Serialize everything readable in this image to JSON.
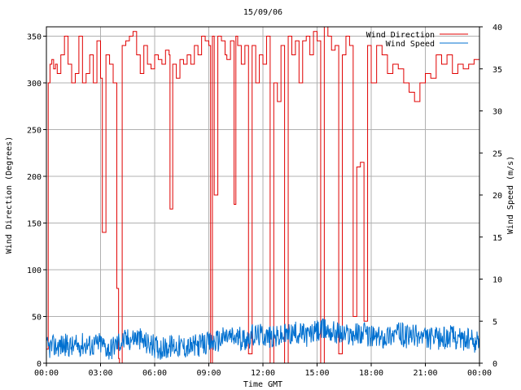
{
  "chart_data": {
    "type": "line",
    "title": "15/09/06",
    "xlabel": "Time GMT",
    "ylabel_left": "Wind Direction (Degrees)",
    "ylabel_right": "Wind Speed (m/s)",
    "x_ticks": [
      "00:00",
      "03:00",
      "06:00",
      "09:00",
      "12:00",
      "15:00",
      "18:00",
      "21:00",
      "00:00"
    ],
    "x_range_hours": [
      0,
      24
    ],
    "y_left_ticks": [
      0,
      50,
      100,
      150,
      200,
      250,
      300,
      350
    ],
    "y_left_range": [
      0,
      360
    ],
    "y_right_ticks": [
      0,
      5,
      10,
      15,
      20,
      25,
      30,
      35,
      40
    ],
    "y_right_range": [
      0,
      40
    ],
    "grid": true,
    "legend_position": "top-right",
    "series": [
      {
        "name": "Wind Direction",
        "axis": "left",
        "color": "#e00000",
        "step": true,
        "x": [
          0.0,
          0.1,
          0.2,
          0.3,
          0.4,
          0.5,
          0.6,
          0.8,
          1.0,
          1.2,
          1.4,
          1.6,
          1.8,
          2.0,
          2.2,
          2.4,
          2.6,
          2.8,
          3.0,
          3.1,
          3.3,
          3.5,
          3.7,
          3.9,
          4.0,
          4.05,
          4.2,
          4.4,
          4.6,
          4.8,
          5.0,
          5.2,
          5.4,
          5.6,
          5.8,
          6.0,
          6.2,
          6.4,
          6.6,
          6.8,
          6.85,
          7.0,
          7.2,
          7.4,
          7.6,
          7.8,
          8.0,
          8.2,
          8.4,
          8.6,
          8.8,
          9.0,
          9.1,
          9.2,
          9.3,
          9.5,
          9.7,
          9.9,
          10.0,
          10.2,
          10.4,
          10.5,
          10.6,
          10.8,
          11.0,
          11.2,
          11.4,
          11.6,
          11.8,
          12.0,
          12.2,
          12.4,
          12.6,
          12.8,
          13.0,
          13.2,
          13.4,
          13.6,
          13.8,
          14.0,
          14.2,
          14.4,
          14.6,
          14.8,
          15.0,
          15.2,
          15.4,
          15.6,
          15.8,
          16.0,
          16.2,
          16.4,
          16.6,
          16.8,
          17.0,
          17.2,
          17.4,
          17.6,
          17.8,
          18.0,
          18.3,
          18.6,
          18.9,
          19.2,
          19.5,
          19.8,
          20.1,
          20.4,
          20.7,
          21.0,
          21.3,
          21.6,
          21.9,
          22.2,
          22.5,
          22.8,
          23.1,
          23.4,
          23.7,
          24.0
        ],
        "values": [
          15,
          300,
          320,
          325,
          315,
          320,
          310,
          330,
          350,
          320,
          300,
          310,
          350,
          300,
          310,
          330,
          300,
          345,
          305,
          140,
          330,
          320,
          300,
          80,
          5,
          0,
          340,
          345,
          350,
          355,
          330,
          310,
          340,
          320,
          315,
          330,
          325,
          320,
          335,
          330,
          165,
          320,
          305,
          325,
          320,
          330,
          320,
          340,
          330,
          350,
          345,
          340,
          0,
          350,
          180,
          350,
          345,
          330,
          325,
          345,
          170,
          350,
          340,
          320,
          340,
          10,
          340,
          300,
          330,
          320,
          350,
          0,
          300,
          280,
          340,
          0,
          350,
          330,
          345,
          300,
          345,
          350,
          330,
          355,
          345,
          0,
          360,
          350,
          335,
          340,
          10,
          330,
          350,
          340,
          50,
          210,
          215,
          45,
          340,
          300,
          340,
          330,
          310,
          320,
          315,
          300,
          290,
          280,
          300,
          310,
          305,
          330,
          320,
          330,
          310,
          320,
          315,
          320,
          325,
          330
        ],
        "note_values": ""
      },
      {
        "name": "Wind Speed",
        "axis": "right",
        "color": "#0070d0",
        "step": false,
        "x": [
          0.0,
          0.5,
          1.0,
          1.5,
          2.0,
          2.5,
          3.0,
          3.5,
          4.0,
          4.5,
          5.0,
          5.5,
          6.0,
          6.5,
          7.0,
          7.5,
          8.0,
          8.5,
          9.0,
          9.5,
          10.0,
          10.5,
          11.0,
          11.5,
          12.0,
          12.5,
          13.0,
          13.5,
          14.0,
          14.5,
          15.0,
          15.5,
          16.0,
          16.5,
          17.0,
          17.5,
          18.0,
          18.5,
          19.0,
          19.5,
          20.0,
          20.5,
          21.0,
          21.5,
          22.0,
          22.5,
          23.0,
          23.5,
          24.0
        ],
        "values": [
          1.8,
          2.0,
          2.2,
          1.9,
          2.3,
          2.1,
          2.4,
          1.6,
          2.5,
          2.8,
          3.1,
          2.4,
          2.0,
          1.7,
          2.1,
          2.0,
          1.9,
          2.2,
          2.3,
          2.7,
          3.2,
          3.0,
          2.9,
          3.3,
          3.4,
          3.0,
          3.2,
          3.5,
          3.6,
          3.3,
          3.8,
          4.0,
          3.7,
          3.4,
          3.5,
          3.6,
          3.2,
          3.0,
          3.4,
          3.6,
          3.1,
          3.3,
          3.0,
          2.8,
          3.0,
          3.2,
          2.9,
          2.7,
          2.5
        ],
        "noise_amplitude": 1.4
      }
    ]
  }
}
